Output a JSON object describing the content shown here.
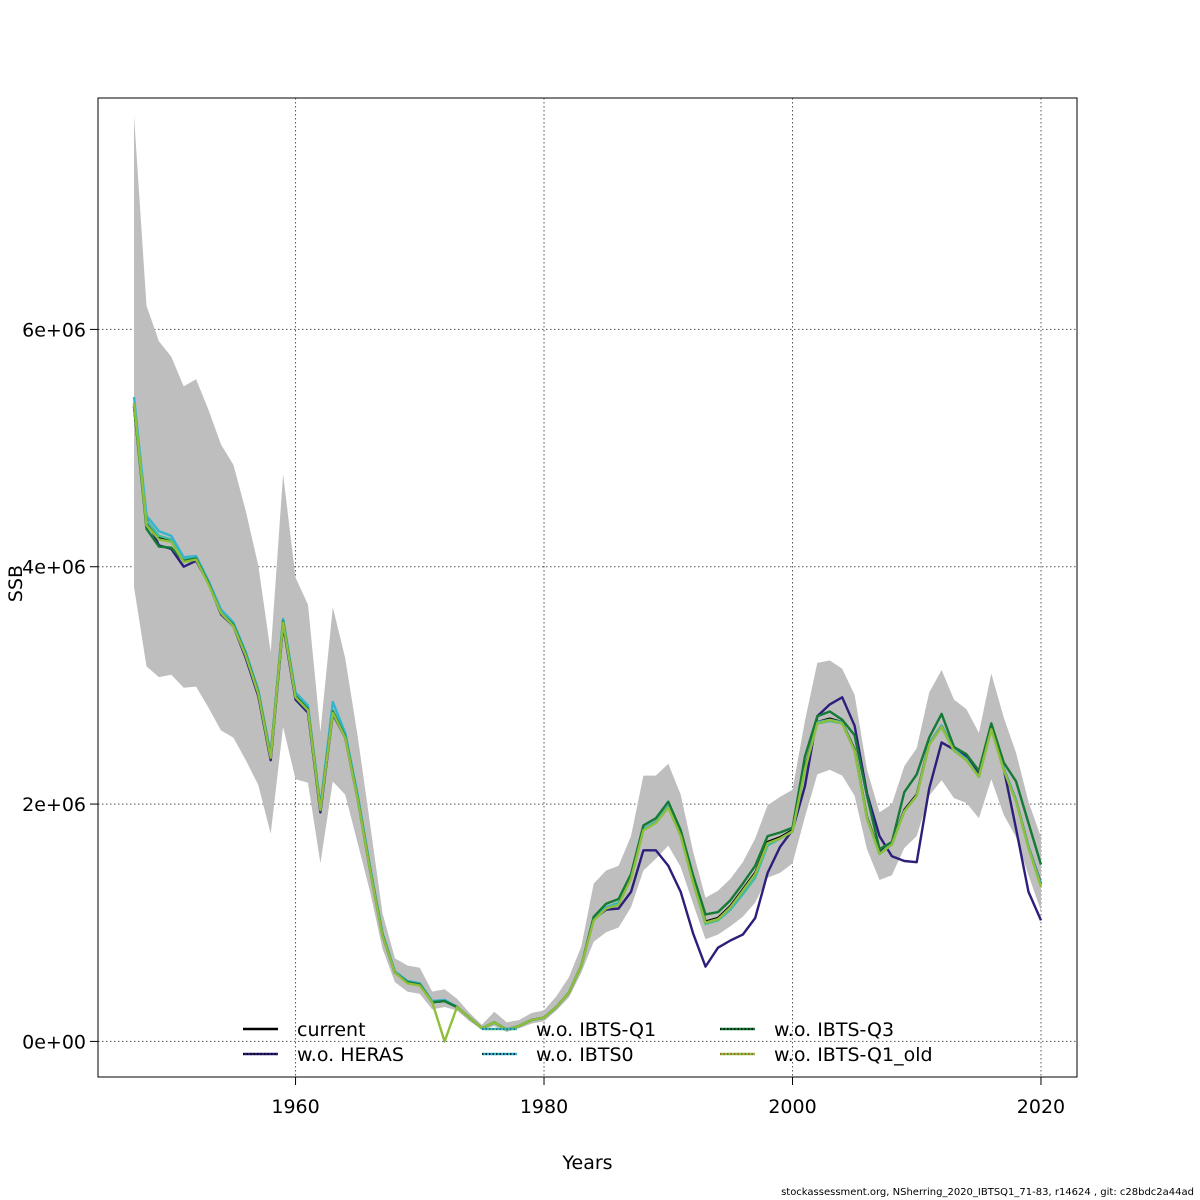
{
  "chart_data": {
    "type": "line",
    "title": "",
    "xlabel": "Years",
    "ylabel": "SSB",
    "xlim": [
      1944.1,
      2022.9
    ],
    "ylim": [
      -300000,
      7950000
    ],
    "x_ticks": [
      1960,
      1980,
      2000,
      2020
    ],
    "x_tick_labels": [
      "1960",
      "1980",
      "2000",
      "2020"
    ],
    "y_ticks": [
      0,
      2000000,
      4000000,
      6000000
    ],
    "y_tick_labels": [
      "0e+00",
      "2e+06",
      "4e+06",
      "6e+06"
    ],
    "grid": true,
    "legend_position": "bottom",
    "legend_cols": 3,
    "x": [
      1947,
      1948,
      1949,
      1950,
      1951,
      1952,
      1953,
      1954,
      1955,
      1956,
      1957,
      1958,
      1959,
      1960,
      1961,
      1962,
      1963,
      1964,
      1965,
      1966,
      1967,
      1968,
      1969,
      1970,
      1971,
      1972,
      1973,
      1974,
      1975,
      1976,
      1977,
      1978,
      1979,
      1980,
      1981,
      1982,
      1983,
      1984,
      1985,
      1986,
      1987,
      1988,
      1989,
      1990,
      1991,
      1992,
      1993,
      1994,
      1995,
      1996,
      1997,
      1998,
      1999,
      2000,
      2001,
      2002,
      2003,
      2004,
      2005,
      2006,
      2007,
      2008,
      2009,
      2010,
      2011,
      2012,
      2013,
      2014,
      2015,
      2016,
      2017,
      2018,
      2019,
      2020
    ],
    "confidence_band": {
      "name": "confidence interval (current)",
      "color": "#bebebe",
      "upper": [
        7800000,
        6200000,
        5900000,
        5770000,
        5520000,
        5580000,
        5320000,
        5030000,
        4860000,
        4470000,
        4010000,
        3280000,
        4780000,
        3910000,
        3680000,
        2610000,
        3660000,
        3230000,
        2570000,
        1830000,
        1080000,
        700000,
        640000,
        620000,
        420000,
        440000,
        360000,
        240000,
        140000,
        250000,
        160000,
        180000,
        240000,
        260000,
        380000,
        540000,
        800000,
        1330000,
        1440000,
        1480000,
        1730000,
        2240000,
        2240000,
        2340000,
        2080000,
        1600000,
        1210000,
        1270000,
        1370000,
        1510000,
        1710000,
        1990000,
        2060000,
        2120000,
        2700000,
        3190000,
        3210000,
        3140000,
        2920000,
        2290000,
        1930000,
        2000000,
        2320000,
        2470000,
        2940000,
        3130000,
        2880000,
        2800000,
        2600000,
        3100000,
        2730000,
        2430000,
        2020000,
        1720000
      ],
      "lower": [
        3830000,
        3160000,
        3070000,
        3090000,
        2980000,
        2990000,
        2810000,
        2620000,
        2560000,
        2370000,
        2160000,
        1750000,
        2650000,
        2210000,
        2180000,
        1500000,
        2190000,
        2080000,
        1670000,
        1260000,
        780000,
        500000,
        420000,
        400000,
        270000,
        290000,
        260000,
        170000,
        100000,
        130000,
        80000,
        110000,
        150000,
        170000,
        260000,
        370000,
        580000,
        840000,
        920000,
        960000,
        1130000,
        1440000,
        1540000,
        1650000,
        1470000,
        1160000,
        860000,
        900000,
        970000,
        1050000,
        1170000,
        1380000,
        1420000,
        1500000,
        1890000,
        2250000,
        2290000,
        2240000,
        2070000,
        1620000,
        1360000,
        1400000,
        1630000,
        1730000,
        2070000,
        2200000,
        2050000,
        2010000,
        1880000,
        2210000,
        1910000,
        1720000,
        1400000,
        1100000
      ]
    },
    "series": [
      {
        "name": "current",
        "color": "#000000",
        "dotted_color": "#000000",
        "values": [
          5350000,
          4370000,
          4250000,
          4220000,
          4050000,
          4070000,
          3860000,
          3620000,
          3510000,
          3260000,
          2940000,
          2400000,
          3540000,
          2910000,
          2800000,
          1960000,
          2780000,
          2570000,
          2050000,
          1450000,
          900000,
          580000,
          500000,
          480000,
          330000,
          340000,
          290000,
          200000,
          110000,
          160000,
          100000,
          130000,
          180000,
          200000,
          290000,
          410000,
          640000,
          1030000,
          1130000,
          1160000,
          1380000,
          1790000,
          1850000,
          1980000,
          1740000,
          1350000,
          1010000,
          1040000,
          1140000,
          1280000,
          1420000,
          1680000,
          1720000,
          1780000,
          2300000,
          2690000,
          2720000,
          2690000,
          2460000,
          1890000,
          1590000,
          1670000,
          1950000,
          2080000,
          2510000,
          2660000,
          2460000,
          2380000,
          2240000,
          2640000,
          2300000,
          2030000,
          1640000,
          1330000
        ]
      },
      {
        "name": "w.o. HERAS",
        "color": "#2c1f7a",
        "dotted_color": "#000000",
        "values": [
          5380000,
          4400000,
          4180000,
          4150000,
          4000000,
          4050000,
          3860000,
          3600000,
          3500000,
          3230000,
          2910000,
          2370000,
          3510000,
          2880000,
          2770000,
          1930000,
          2760000,
          2560000,
          2040000,
          1440000,
          890000,
          580000,
          500000,
          480000,
          330000,
          340000,
          290000,
          200000,
          110000,
          160000,
          100000,
          130000,
          180000,
          200000,
          290000,
          410000,
          640000,
          1030000,
          1110000,
          1120000,
          1260000,
          1610000,
          1610000,
          1480000,
          1260000,
          910000,
          630000,
          790000,
          850000,
          900000,
          1040000,
          1420000,
          1640000,
          1780000,
          2150000,
          2740000,
          2840000,
          2900000,
          2660000,
          2090000,
          1730000,
          1560000,
          1520000,
          1510000,
          2130000,
          2520000,
          2460000,
          2400000,
          2260000,
          2660000,
          2300000,
          1790000,
          1260000,
          1020000
        ]
      },
      {
        "name": "w.o. IBTS-Q1",
        "color": "#3dbd9a",
        "dotted_color": "#1f5fb3",
        "values": [
          5360000,
          4390000,
          4260000,
          4230000,
          4060000,
          4080000,
          3870000,
          3630000,
          3520000,
          3270000,
          2950000,
          2410000,
          3550000,
          2920000,
          2810000,
          1970000,
          2790000,
          2580000,
          2060000,
          1460000,
          900000,
          590000,
          500000,
          480000,
          330000,
          340000,
          290000,
          200000,
          110000,
          160000,
          100000,
          130000,
          180000,
          200000,
          290000,
          410000,
          640000,
          1030000,
          1130000,
          1170000,
          1380000,
          1790000,
          1850000,
          1980000,
          1740000,
          1340000,
          990000,
          1020000,
          1110000,
          1240000,
          1380000,
          1650000,
          1710000,
          1770000,
          2290000,
          2680000,
          2700000,
          2680000,
          2450000,
          1880000,
          1580000,
          1660000,
          1940000,
          2070000,
          2500000,
          2650000,
          2450000,
          2370000,
          2230000,
          2630000,
          2290000,
          2020000,
          1630000,
          1320000
        ]
      },
      {
        "name": "w.o. IBTS0",
        "color": "#34b4cf",
        "dotted_color": "#000000",
        "values": [
          5430000,
          4430000,
          4300000,
          4260000,
          4080000,
          4090000,
          3880000,
          3640000,
          3530000,
          3280000,
          2960000,
          2420000,
          3560000,
          2940000,
          2830000,
          1980000,
          2860000,
          2600000,
          2080000,
          1470000,
          910000,
          590000,
          510000,
          490000,
          340000,
          350000,
          290000,
          200000,
          110000,
          160000,
          100000,
          130000,
          180000,
          200000,
          290000,
          410000,
          640000,
          1030000,
          1130000,
          1160000,
          1380000,
          1790000,
          1850000,
          1980000,
          1740000,
          1340000,
          1000000,
          1030000,
          1120000,
          1260000,
          1400000,
          1660000,
          1710000,
          1770000,
          2290000,
          2690000,
          2710000,
          2690000,
          2450000,
          1880000,
          1580000,
          1670000,
          1940000,
          2070000,
          2510000,
          2660000,
          2460000,
          2380000,
          2230000,
          2640000,
          2300000,
          2030000,
          1640000,
          1320000
        ]
      },
      {
        "name": "w.o. IBTS-Q3",
        "color": "#157a35",
        "dotted_color": "#000000",
        "values": [
          5350000,
          4320000,
          4170000,
          4160000,
          4050000,
          4070000,
          3860000,
          3610000,
          3510000,
          3260000,
          2940000,
          2400000,
          3540000,
          2910000,
          2800000,
          1960000,
          2780000,
          2570000,
          2050000,
          1450000,
          900000,
          580000,
          500000,
          480000,
          330000,
          340000,
          290000,
          200000,
          110000,
          160000,
          100000,
          130000,
          180000,
          200000,
          290000,
          410000,
          640000,
          1050000,
          1160000,
          1200000,
          1410000,
          1820000,
          1880000,
          2020000,
          1780000,
          1400000,
          1070000,
          1090000,
          1190000,
          1330000,
          1480000,
          1730000,
          1760000,
          1800000,
          2400000,
          2740000,
          2780000,
          2710000,
          2580000,
          2070000,
          1620000,
          1680000,
          2100000,
          2250000,
          2560000,
          2760000,
          2480000,
          2420000,
          2280000,
          2680000,
          2350000,
          2190000,
          1840000,
          1490000
        ]
      },
      {
        "name": "w.o. IBTS-Q1_old",
        "color": "#8fbe3a",
        "dotted_color": "#a0522d",
        "values": [
          5380000,
          4350000,
          4230000,
          4210000,
          4040000,
          4060000,
          3850000,
          3610000,
          3500000,
          3250000,
          2930000,
          2390000,
          3530000,
          2900000,
          2790000,
          1950000,
          2770000,
          2560000,
          2040000,
          1440000,
          890000,
          580000,
          490000,
          470000,
          330000,
          340,
          290000,
          200000,
          110000,
          160000,
          100000,
          130000,
          180000,
          200000,
          290000,
          410000,
          640000,
          1020000,
          1120000,
          1150000,
          1370000,
          1780000,
          1840000,
          1970000,
          1730000,
          1340000,
          1000000,
          1030000,
          1130000,
          1270000,
          1410000,
          1670000,
          1710000,
          1770000,
          2290000,
          2680000,
          2710000,
          2680000,
          2450000,
          1880000,
          1580000,
          1660000,
          1940000,
          2070000,
          2500000,
          2650000,
          2450000,
          2370000,
          2230000,
          2630000,
          2290000,
          2020000,
          1630000,
          1300000
        ]
      }
    ]
  },
  "footer": "stockassessment.org, NSherring_2020_IBTSQ1_71-83, r14624 , git: c28bdc2a44ad"
}
